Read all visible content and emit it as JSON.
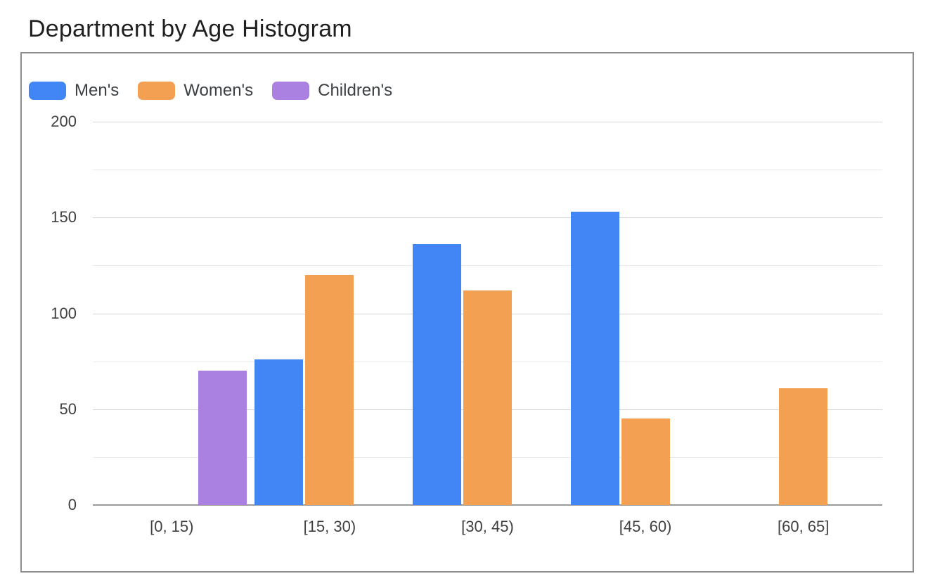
{
  "title": "Department by Age Histogram",
  "chart_data": {
    "type": "bar",
    "title": "Department by Age Histogram",
    "categories": [
      "[0, 15)",
      "[15, 30)",
      "[30, 45)",
      "[45, 60)",
      "[60, 65]"
    ],
    "series": [
      {
        "name": "Men's",
        "color": "#4285F4",
        "values": [
          0,
          76,
          136,
          153,
          0
        ]
      },
      {
        "name": "Women's",
        "color": "#F4A052",
        "values": [
          0,
          120,
          112,
          45,
          61
        ]
      },
      {
        "name": "Children's",
        "color": "#AA80E0",
        "values": [
          70,
          0,
          0,
          0,
          0
        ]
      }
    ],
    "xlabel": "",
    "ylabel": "",
    "ylim": [
      0,
      200
    ],
    "yticks": [
      0,
      50,
      100,
      150,
      200
    ],
    "minor_grid_step": 25,
    "grid": true,
    "legend_position": "top-left",
    "baseline_value": 0
  }
}
